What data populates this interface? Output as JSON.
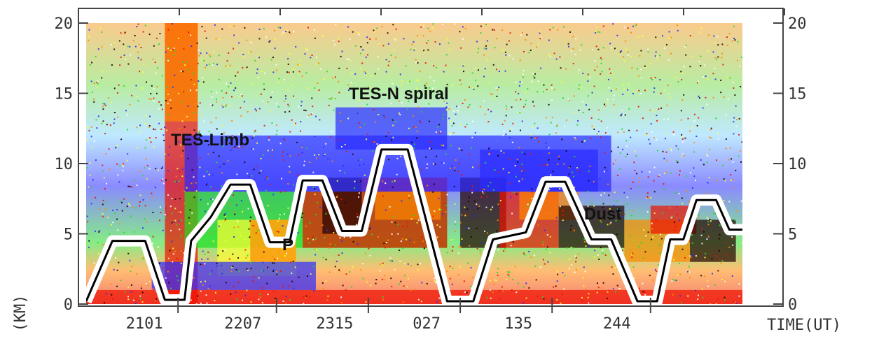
{
  "chart_data": {
    "type": "heatmap",
    "title": "",
    "xlabel": "TIME(UT)",
    "ylabel": "(KM)",
    "x_ticks": [
      "2101",
      "2207",
      "2315",
      "027",
      "135",
      "244"
    ],
    "y_ticks": [
      0,
      5,
      10,
      15,
      20
    ],
    "y_ticks_right": [
      0,
      5,
      10,
      15,
      20
    ],
    "ylim": [
      0,
      20
    ],
    "annotations": [
      "TES-Limb",
      "TES-N spiral",
      "P",
      "Dust"
    ],
    "colors": {
      "low": "#2b2bff",
      "mid_low": "#22dd22",
      "mid": "#ffff33",
      "mid_high": "#ff8800",
      "high": "#ee1100",
      "very_high": "#220000"
    },
    "flight_altitude_km": [
      [
        0.0,
        0.2
      ],
      [
        0.04,
        4.5
      ],
      [
        0.09,
        4.5
      ],
      [
        0.12,
        0.3
      ],
      [
        0.15,
        0.3
      ],
      [
        0.16,
        4.5
      ],
      [
        0.19,
        6.2
      ],
      [
        0.22,
        8.5
      ],
      [
        0.25,
        8.5
      ],
      [
        0.28,
        4.4
      ],
      [
        0.31,
        4.4
      ],
      [
        0.33,
        8.8
      ],
      [
        0.36,
        8.8
      ],
      [
        0.39,
        5.2
      ],
      [
        0.42,
        5.2
      ],
      [
        0.45,
        11.0
      ],
      [
        0.49,
        11.0
      ],
      [
        0.55,
        0.2
      ],
      [
        0.59,
        0.2
      ],
      [
        0.62,
        4.6
      ],
      [
        0.67,
        5.1
      ],
      [
        0.7,
        8.7
      ],
      [
        0.73,
        8.7
      ],
      [
        0.77,
        4.6
      ],
      [
        0.8,
        4.6
      ],
      [
        0.84,
        0.2
      ],
      [
        0.87,
        0.2
      ],
      [
        0.89,
        4.6
      ],
      [
        0.91,
        4.6
      ],
      [
        0.93,
        7.4
      ],
      [
        0.96,
        7.4
      ],
      [
        0.98,
        5.3
      ],
      [
        1.0,
        5.3
      ]
    ]
  }
}
